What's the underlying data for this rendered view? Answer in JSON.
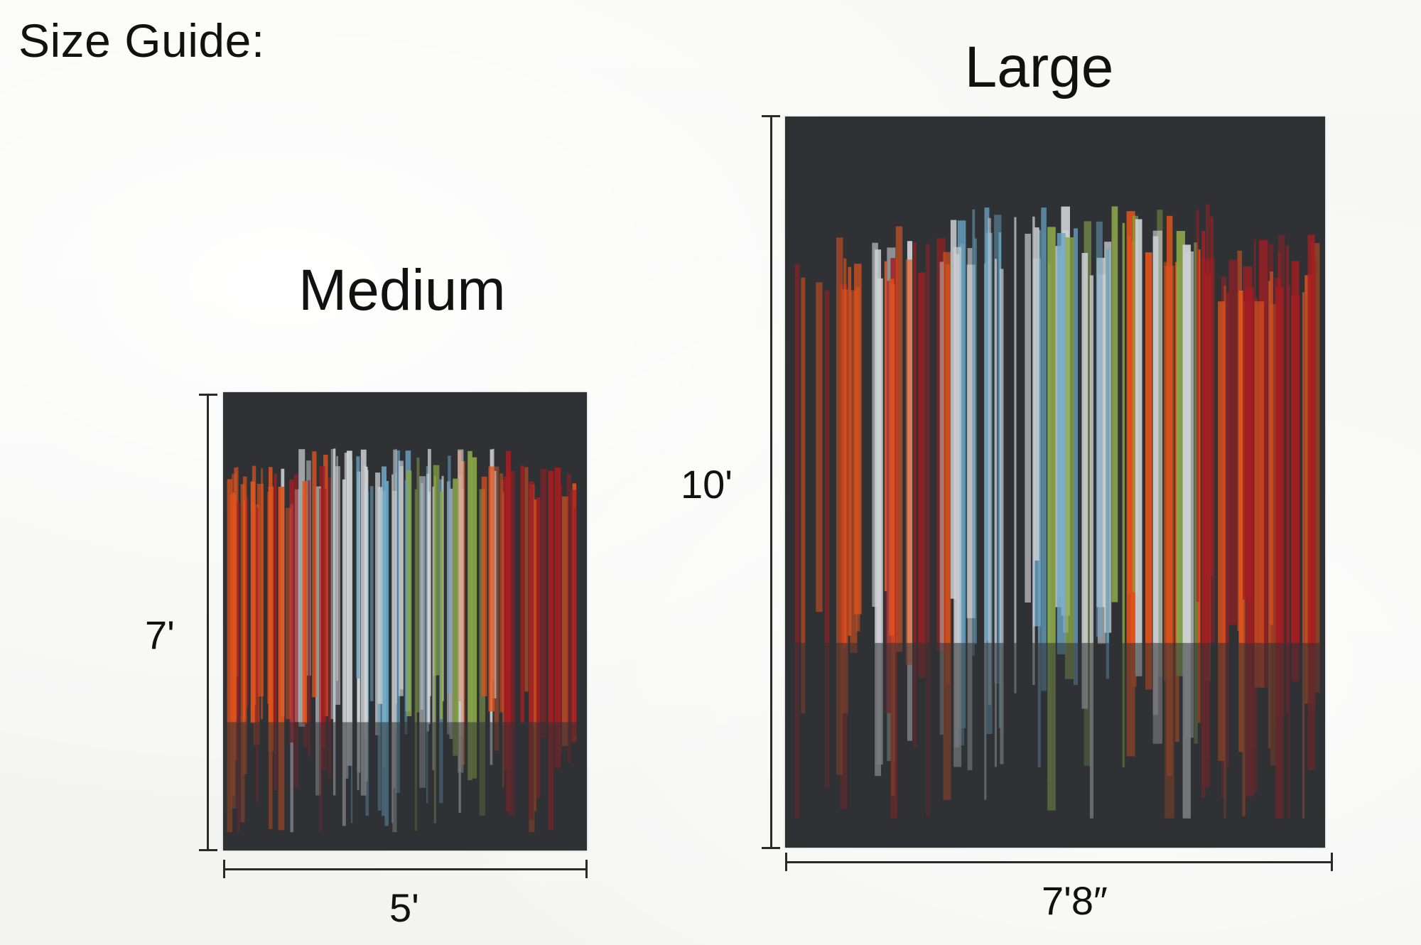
{
  "heading": "Size Guide:",
  "sizes": [
    {
      "title": "Medium",
      "height_label": "7'",
      "width_label": "5'"
    },
    {
      "title": "Large",
      "height_label": "10'",
      "width_label": "7'8″"
    }
  ],
  "rug_palette": {
    "base": "#2f3135",
    "orange": "#e2541c",
    "red": "#a21e22",
    "light_gray": "#cfd2d4",
    "blue": "#6aa6c4",
    "green": "#8aa64a"
  }
}
